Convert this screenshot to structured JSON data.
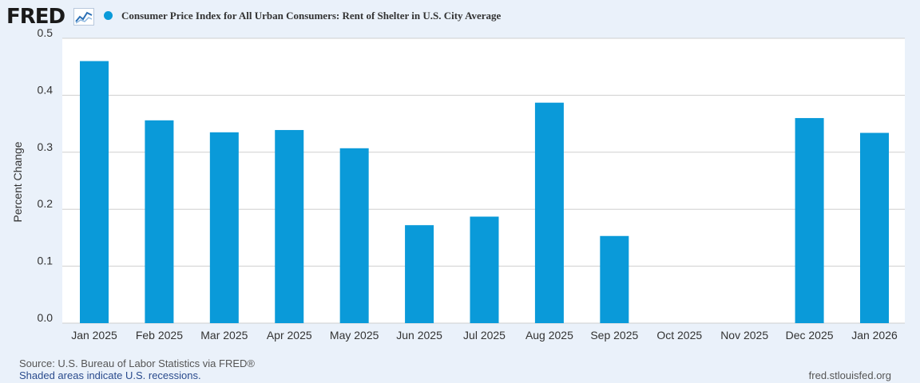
{
  "header": {
    "logo_text": "FRED",
    "logo_icon": "line-graph-icon",
    "legend_marker_color": "#0a9ad9"
  },
  "chart_data": {
    "type": "bar",
    "title": "Consumer Price Index for All Urban Consumers: Rent of Shelter in U.S. City Average",
    "ylabel": "Percent Change",
    "xlabel": "",
    "ylim": [
      0,
      0.5
    ],
    "yticks": [
      0.0,
      0.1,
      0.2,
      0.3,
      0.4,
      0.5
    ],
    "ytick_labels": [
      "0.0",
      "0.1",
      "0.2",
      "0.3",
      "0.4",
      "0.5"
    ],
    "categories": [
      "Jan 2025",
      "Feb 2025",
      "Mar 2025",
      "Apr 2025",
      "May 2025",
      "Jun 2025",
      "Jul 2025",
      "Aug 2025",
      "Sep 2025",
      "Oct 2025",
      "Nov 2025",
      "Dec 2025",
      "Jan 2026"
    ],
    "values": [
      0.46,
      0.356,
      0.335,
      0.339,
      0.307,
      0.172,
      0.187,
      0.387,
      0.153,
      null,
      null,
      0.36,
      0.334
    ],
    "bar_color": "#0a9ad9",
    "grid": true
  },
  "footer": {
    "source": "Source: U.S. Bureau of Labor Statistics via FRED®",
    "recessions": "Shaded areas indicate U.S. recessions.",
    "url": "fred.stlouisfed.org"
  }
}
